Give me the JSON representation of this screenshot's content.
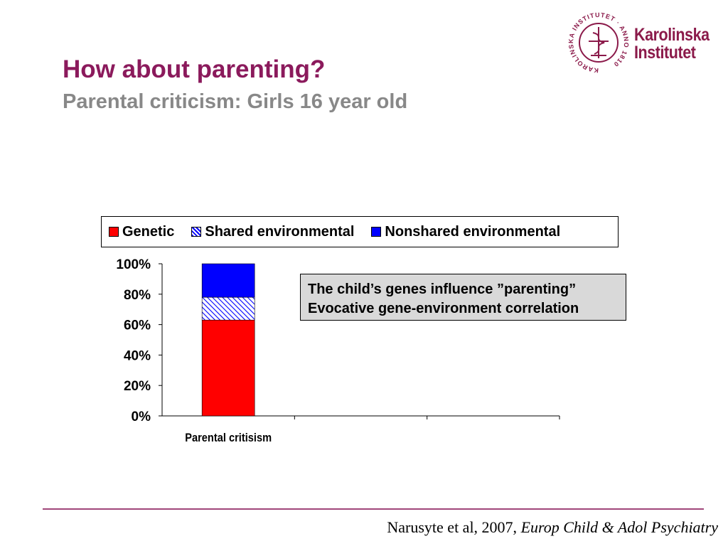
{
  "slide": {
    "title": "How about parenting?",
    "subtitle": "Parental criticism: Girls 16 year old",
    "title_color": "#8B1A5C",
    "subtitle_color": "#888888",
    "divider_color": "#A0467A"
  },
  "logo": {
    "line1": "Karolinska",
    "line2": "Institutet",
    "seal_text": "KAROLINSKA INSTITUTET · ANNO 1810",
    "color": "#8B1A4A"
  },
  "annotation": {
    "line1": "The child’s genes influence ”parenting”",
    "line2": "Evocative gene-environment correlation"
  },
  "citation": {
    "prefix": "Narusyte et al, 2007, ",
    "journal": "Europ Child & Adol Psychiatry"
  },
  "chart_data": {
    "type": "bar",
    "stacked": true,
    "categories": [
      "Parental critisism",
      "",
      ""
    ],
    "series": [
      {
        "name": "Genetic",
        "values": [
          63,
          0,
          0
        ],
        "color": "#FF0000",
        "pattern": "solid"
      },
      {
        "name": "Shared environmental",
        "values": [
          15,
          0,
          0
        ],
        "color": "#0000FF",
        "pattern": "hatched"
      },
      {
        "name": "Nonshared environmental",
        "values": [
          22,
          0,
          0
        ],
        "color": "#0000FF",
        "pattern": "solid"
      }
    ],
    "ylim": [
      0,
      100
    ],
    "yticks": [
      "0%",
      "20%",
      "40%",
      "60%",
      "80%",
      "100%"
    ],
    "grid": false,
    "legend_position": "top"
  }
}
